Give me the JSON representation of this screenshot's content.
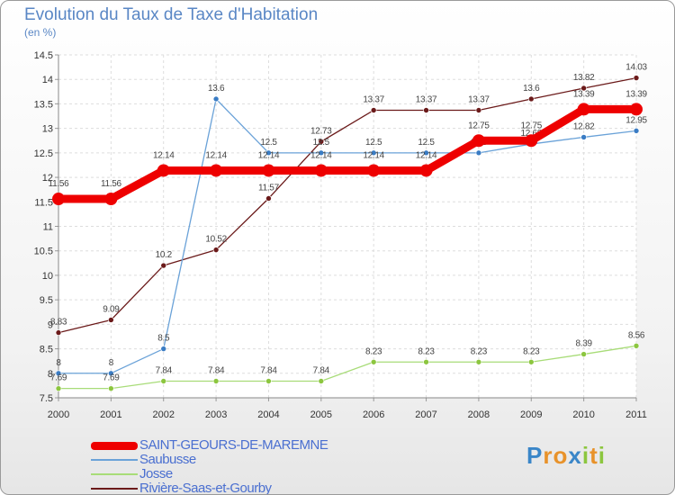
{
  "title": "Evolution du Taux de Taxe d'Habitation",
  "subtitle": "(en %)",
  "logo": {
    "letters": [
      "P",
      "r",
      "o",
      "x",
      "i",
      "t",
      "i"
    ],
    "colors": [
      "#3a86c8",
      "#e8922a",
      "#e8922a",
      "#3a86c8",
      "#8cc63f",
      "#e8922a",
      "#8cc63f"
    ]
  },
  "chart_data": {
    "type": "line",
    "categories": [
      "2000",
      "2001",
      "2002",
      "2003",
      "2004",
      "2005",
      "2006",
      "2007",
      "2008",
      "2009",
      "2010",
      "2011"
    ],
    "ylim": [
      7.5,
      14.5
    ],
    "yticks": [
      "7.5",
      "8",
      "8.5",
      "9",
      "9.5",
      "10",
      "10.5",
      "11",
      "11.5",
      "12",
      "12.5",
      "13",
      "13.5",
      "14",
      "14.5"
    ],
    "grid": true,
    "series": [
      {
        "name": "Rivière-Saas-et-Gourby",
        "color": "#6b1a1a",
        "marker": "#6b1a1a",
        "weight": "thin",
        "values": [
          8.83,
          9.09,
          10.2,
          10.52,
          11.57,
          12.73,
          13.37,
          13.37,
          13.37,
          13.6,
          13.82,
          14.03
        ],
        "labels": [
          "8.83",
          "9.09",
          "10.2",
          "10.52",
          "11.57",
          "12.73",
          "13.37",
          "13.37",
          "13.37",
          "13.6",
          "13.82",
          "14.03"
        ]
      },
      {
        "name": "Saubusse",
        "color": "#6aa2d8",
        "marker": "#3a7cc4",
        "weight": "thin",
        "values": [
          8,
          8,
          8.5,
          13.6,
          12.5,
          12.5,
          12.5,
          12.5,
          12.5,
          12.68,
          12.82,
          12.95
        ],
        "labels": [
          "8",
          "8",
          "8.5",
          "13.6",
          "12.5",
          "12.5",
          "12.5",
          "12.5",
          "12.5",
          "12.68",
          "12.82",
          "12.95"
        ]
      },
      {
        "name": "Josse",
        "color": "#a8dc78",
        "marker": "#8cc63f",
        "weight": "thin",
        "values": [
          7.69,
          7.69,
          7.84,
          7.84,
          7.84,
          7.84,
          8.23,
          8.23,
          8.23,
          8.23,
          8.39,
          8.56
        ],
        "labels": [
          "7.69",
          "7.69",
          "7.84",
          "7.84",
          "7.84",
          "7.84",
          "8.23",
          "8.23",
          "8.23",
          "8.23",
          "8.39",
          "8.56"
        ]
      },
      {
        "name": "SAINT-GEOURS-DE-MAREMNE",
        "color": "#ee0000",
        "marker": "#ee0000",
        "weight": "thick",
        "values": [
          11.56,
          11.56,
          12.14,
          12.14,
          12.14,
          12.14,
          12.14,
          12.14,
          12.75,
          12.75,
          13.39,
          13.39
        ],
        "labels": [
          "11.56",
          "11.56",
          "12.14",
          "12.14",
          "12.14",
          "12.14",
          "12.14",
          "12.14",
          "12.75",
          "12.75",
          "13.39",
          "13.39"
        ]
      }
    ],
    "legend_order": [
      "SAINT-GEOURS-DE-MAREMNE",
      "Saubusse",
      "Josse",
      "Rivière-Saas-et-Gourby"
    ]
  }
}
